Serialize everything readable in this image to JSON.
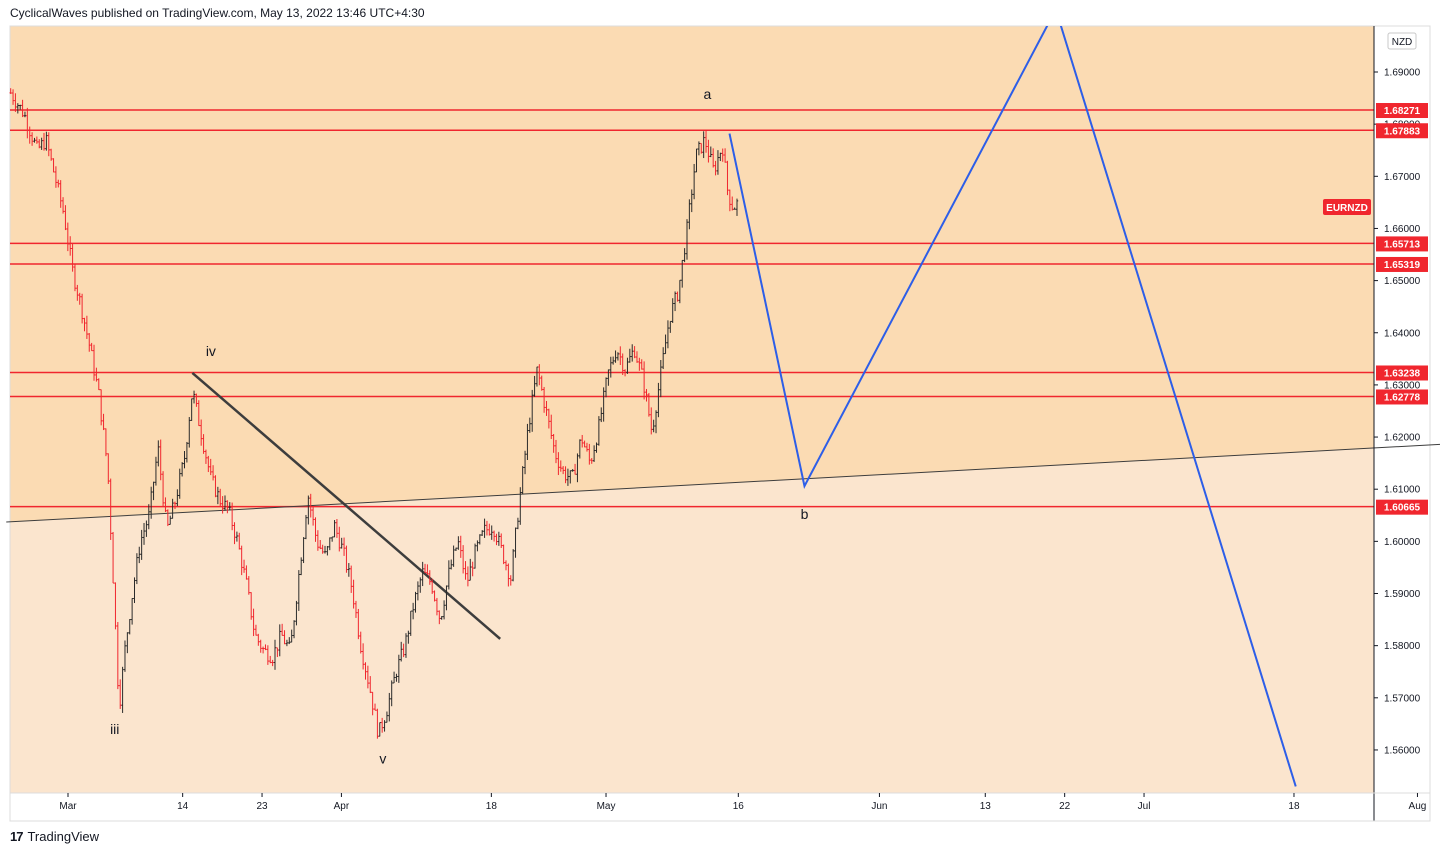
{
  "header": {
    "attribution": "CyclicalWaves published on TradingView.com, May 13, 2022 13:46 UTC+4:30"
  },
  "footer": {
    "brand": "TradingView",
    "logo_text": "17"
  },
  "colors": {
    "zone_upper": "#fbdbb3",
    "zone_lower": "#fbe5ce",
    "level_line": "#f0262e",
    "forecast_line": "#2d5ee8",
    "trend_line": "#3d3d3d",
    "candle_up": "#2a2a2a",
    "candle_down": "#f0262e",
    "tag_bg": "#f0262e"
  },
  "chart_data": {
    "type": "candlestick",
    "symbol": "EURNZD",
    "currency": "NZD",
    "y_axis": {
      "min": 1.552,
      "max": 1.6969,
      "ticks": [
        "1.69000",
        "1.68000",
        "1.67000",
        "1.66000",
        "1.65000",
        "1.64000",
        "1.63000",
        "1.62000",
        "1.61000",
        "1.60000",
        "1.59000",
        "1.58000",
        "1.57000",
        "1.56000"
      ]
    },
    "x_axis": {
      "ticks": [
        {
          "label": "Mar",
          "day": 0
        },
        {
          "label": "14",
          "day": 13
        },
        {
          "label": "23",
          "day": 22
        },
        {
          "label": "Apr",
          "day": 31
        },
        {
          "label": "18",
          "day": 48
        },
        {
          "label": "May",
          "day": 61
        },
        {
          "label": "16",
          "day": 76
        },
        {
          "label": "Jun",
          "day": 92
        },
        {
          "label": "13",
          "day": 104
        },
        {
          "label": "22",
          "day": 113
        },
        {
          "label": "Jul",
          "day": 122
        },
        {
          "label": "18",
          "day": 139
        },
        {
          "label": "Aug",
          "day": 153
        }
      ]
    },
    "horizontal_levels": [
      "1.68271",
      "1.67883",
      "1.65713",
      "1.65319",
      "1.63238",
      "1.62778",
      "1.60665"
    ],
    "price_path": [
      [
        -6.5,
        1.686
      ],
      [
        -5,
        1.682
      ],
      [
        -3.5,
        1.675
      ],
      [
        -2.5,
        1.677
      ],
      [
        -1.5,
        1.67
      ],
      [
        -0.5,
        1.663
      ],
      [
        0.5,
        1.652
      ],
      [
        1.5,
        1.645
      ],
      [
        2.5,
        1.637
      ],
      [
        3.5,
        1.628
      ],
      [
        4.5,
        1.614
      ],
      [
        5.2,
        1.59
      ],
      [
        5.8,
        1.568
      ],
      [
        6.5,
        1.58
      ],
      [
        7.3,
        1.59
      ],
      [
        8.2,
        1.6
      ],
      [
        9.2,
        1.605
      ],
      [
        10.2,
        1.618
      ],
      [
        11.2,
        1.602
      ],
      [
        12.2,
        1.608
      ],
      [
        13.2,
        1.616
      ],
      [
        14.1,
        1.629
      ],
      [
        15.2,
        1.62
      ],
      [
        16.2,
        1.612
      ],
      [
        17.2,
        1.608
      ],
      [
        18.2,
        1.606
      ],
      [
        19.2,
        1.6
      ],
      [
        20.2,
        1.592
      ],
      [
        21.2,
        1.582
      ],
      [
        22.2,
        1.579
      ],
      [
        23.2,
        1.578
      ],
      [
        24.2,
        1.582
      ],
      [
        25.2,
        1.579
      ],
      [
        26.2,
        1.594
      ],
      [
        27.2,
        1.609
      ],
      [
        28.2,
        1.6
      ],
      [
        29.2,
        1.597
      ],
      [
        30.2,
        1.603
      ],
      [
        31.2,
        1.598
      ],
      [
        32.2,
        1.591
      ],
      [
        33.2,
        1.58
      ],
      [
        34.2,
        1.572
      ],
      [
        35.2,
        1.563
      ],
      [
        36.2,
        1.568
      ],
      [
        37.2,
        1.575
      ],
      [
        38.2,
        1.58
      ],
      [
        39.2,
        1.588
      ],
      [
        40.2,
        1.594
      ],
      [
        41.2,
        1.592
      ],
      [
        42.2,
        1.585
      ],
      [
        43.2,
        1.594
      ],
      [
        44.2,
        1.6
      ],
      [
        45.2,
        1.592
      ],
      [
        46.2,
        1.598
      ],
      [
        47.2,
        1.602
      ],
      [
        48.2,
        1.603
      ],
      [
        49.2,
        1.598
      ],
      [
        50.2,
        1.593
      ],
      [
        51.2,
        1.608
      ],
      [
        52.2,
        1.622
      ],
      [
        53.2,
        1.633
      ],
      [
        54.2,
        1.625
      ],
      [
        55.2,
        1.617
      ],
      [
        56.2,
        1.613
      ],
      [
        57.2,
        1.612
      ],
      [
        58.2,
        1.62
      ],
      [
        59.2,
        1.615
      ],
      [
        60.2,
        1.622
      ],
      [
        61.2,
        1.632
      ],
      [
        62.2,
        1.637
      ],
      [
        63.2,
        1.633
      ],
      [
        64.2,
        1.637
      ],
      [
        65.2,
        1.631
      ],
      [
        66.2,
        1.621
      ],
      [
        67.2,
        1.632
      ],
      [
        68.2,
        1.643
      ],
      [
        69.2,
        1.648
      ],
      [
        70.2,
        1.66
      ],
      [
        71.2,
        1.674
      ],
      [
        72.2,
        1.677
      ],
      [
        73.2,
        1.671
      ],
      [
        74.2,
        1.676
      ],
      [
        74.8,
        1.667
      ],
      [
        75.4,
        1.664
      ],
      [
        76.0,
        1.665
      ]
    ],
    "forecast_path": [
      [
        75.0,
        1.6782
      ],
      [
        83.5,
        1.6106
      ],
      [
        112,
        1.702
      ],
      [
        139.2,
        1.553
      ]
    ],
    "trend_lines": [
      {
        "name": "support",
        "points": [
          [
            -7,
            1.6037
          ],
          [
            160,
            1.619
          ]
        ]
      },
      {
        "name": "resistance",
        "points": [
          [
            14.1,
            1.6323
          ],
          [
            49,
            1.5813
          ]
        ]
      }
    ],
    "wave_labels": [
      {
        "text": "iii",
        "day": 5.3,
        "price": 1.5631
      },
      {
        "text": "iv",
        "day": 16.2,
        "price": 1.6355
      },
      {
        "text": "v",
        "day": 35.7,
        "price": 1.5574
      },
      {
        "text": "a",
        "day": 72.5,
        "price": 1.6848
      },
      {
        "text": "b",
        "day": 83.5,
        "price": 1.6043
      }
    ]
  }
}
